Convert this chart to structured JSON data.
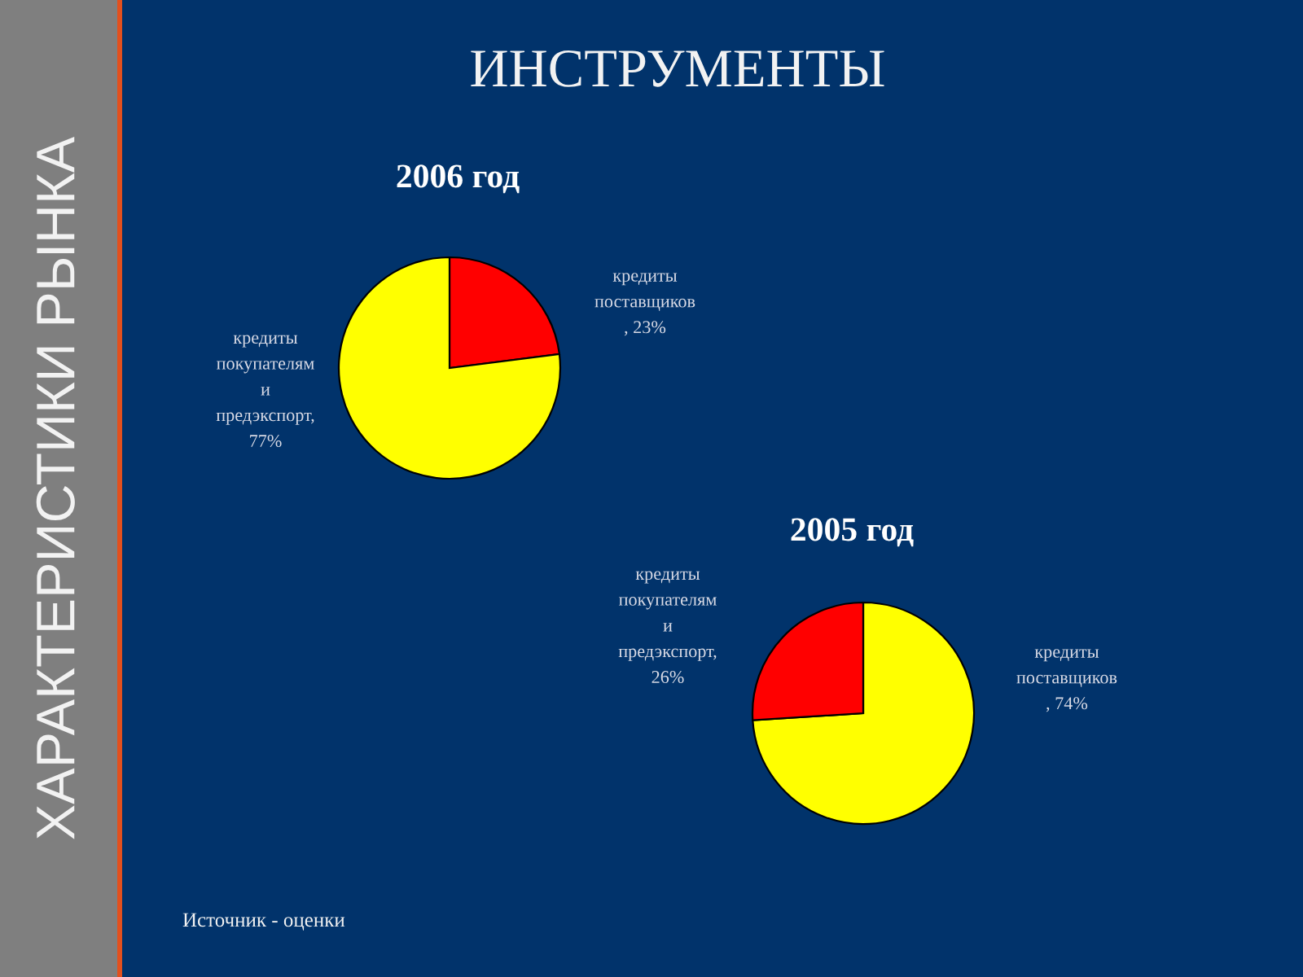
{
  "chart_data": [
    {
      "type": "pie",
      "title": "2006 год",
      "categories": [
        "кредиты\nпоставщиков\n, 23%",
        "кредиты\nпокупателям\nи\nпредэкспорт,\n77%"
      ],
      "values": [
        23,
        77
      ],
      "colors": [
        "#ff0000",
        "#ffff00"
      ],
      "annotations": [
        "ИНСТРУМЕНТЫ",
        "ХАРАКТЕРИСТИКИ РЫНКА"
      ]
    },
    {
      "type": "pie",
      "title": "2005 год",
      "categories": [
        "кредиты\nпоставщиков\n, 74%",
        "кредиты\nпокупателям\nи\nпредэкспорт,\n26%"
      ],
      "values": [
        74,
        26
      ],
      "colors": [
        "#ffff00",
        "#ff0000"
      ],
      "annotations": [
        "Источник - оценки"
      ]
    }
  ]
}
